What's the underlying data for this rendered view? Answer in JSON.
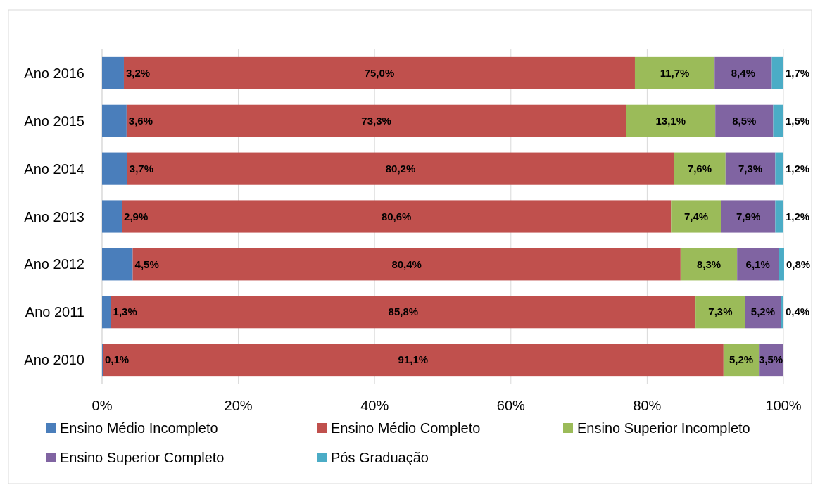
{
  "chart_data": {
    "type": "bar",
    "orientation": "horizontal",
    "stacked": true,
    "categories": [
      "Ano 2016",
      "Ano 2015",
      "Ano 2014",
      "Ano 2013",
      "Ano 2012",
      "Ano 2011",
      "Ano 2010"
    ],
    "series": [
      {
        "name": "Ensino Médio Incompleto",
        "color": "#4a7ebb",
        "values": [
          3.2,
          3.6,
          3.7,
          2.9,
          4.5,
          1.3,
          0.1
        ],
        "value_labels": [
          "3,2%",
          "3,6%",
          "3,7%",
          "2,9%",
          "4,5%",
          "1,3%",
          "0,1%"
        ]
      },
      {
        "name": "Ensino Médio Completo",
        "color": "#c0504d",
        "values": [
          75.0,
          73.3,
          80.2,
          80.6,
          80.4,
          85.8,
          91.1
        ],
        "value_labels": [
          "75,0%",
          "73,3%",
          "80,2%",
          "80,6%",
          "80,4%",
          "85,8%",
          "91,1%"
        ]
      },
      {
        "name": "Ensino Superior Incompleto",
        "color": "#9bbb59",
        "values": [
          11.7,
          13.1,
          7.6,
          7.4,
          8.3,
          7.3,
          5.2
        ],
        "value_labels": [
          "11,7%",
          "13,1%",
          "7,6%",
          "7,4%",
          "8,3%",
          "7,3%",
          "5,2%"
        ]
      },
      {
        "name": "Ensino Superior Completo",
        "color": "#8064a2",
        "values": [
          8.4,
          8.5,
          7.3,
          7.9,
          6.1,
          5.2,
          3.5
        ],
        "value_labels": [
          "8,4%",
          "8,5%",
          "7,3%",
          "7,9%",
          "6,1%",
          "5,2%",
          "3,5%"
        ]
      },
      {
        "name": "Pós Graduação",
        "color": "#4bacc6",
        "values": [
          1.7,
          1.5,
          1.2,
          1.2,
          0.8,
          0.4,
          null
        ],
        "value_labels": [
          "1,7%",
          "1,5%",
          "1,2%",
          "1,2%",
          "0,8%",
          "0,4%",
          null
        ]
      }
    ],
    "xlim": [
      0,
      100
    ],
    "xticks": [
      {
        "value": 0,
        "label": "0%"
      },
      {
        "value": 20,
        "label": "20%"
      },
      {
        "value": 40,
        "label": "40%"
      },
      {
        "value": 60,
        "label": "60%"
      },
      {
        "value": 80,
        "label": "80%"
      },
      {
        "value": 100,
        "label": "100%"
      }
    ],
    "grid": "x",
    "legend": "bottom"
  }
}
